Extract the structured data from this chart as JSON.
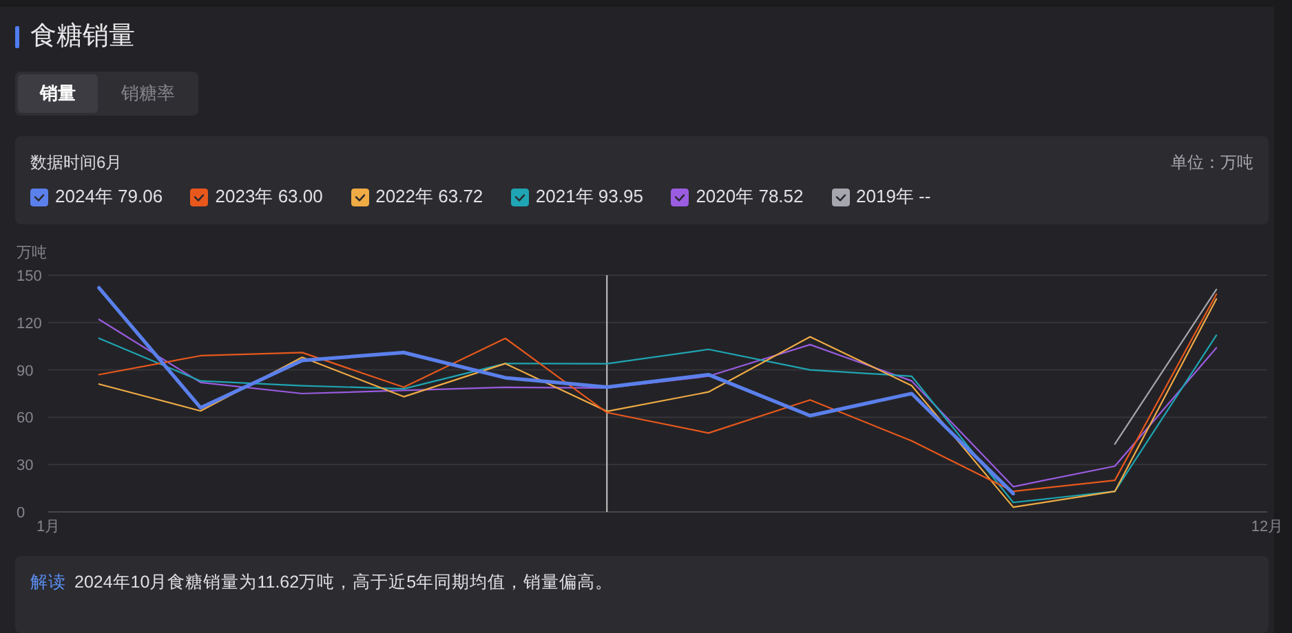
{
  "chart_data": {
    "type": "line",
    "title": "食糖销量",
    "ylabel": "万吨",
    "legend_title": "数据时间6月",
    "annotations": [
      "销量",
      "销糖率",
      "单位：万吨",
      "解读",
      "2024年10月食糖销量为11.62万吨，高于近5年同期均值，销量偏高。"
    ],
    "x": [
      1,
      2,
      3,
      4,
      5,
      6,
      7,
      8,
      9,
      10,
      11,
      12
    ],
    "xlim": [
      0.5,
      12.5
    ],
    "xticks": [
      {
        "value": 0.5,
        "label": "1月"
      },
      {
        "value": 12.5,
        "label": "12月"
      }
    ],
    "ylim": [
      0,
      150
    ],
    "yticks": [
      0,
      30,
      60,
      90,
      120,
      150
    ],
    "grid": "y",
    "legend": "top",
    "ref_lines": [
      {
        "axis": "x",
        "value": 6,
        "color": "#c8c8c8"
      }
    ],
    "series": [
      {
        "name": "2024年 79.06",
        "color": "#5b80ec",
        "values": [
          142,
          66,
          96,
          101,
          85,
          79.06,
          87,
          61,
          75,
          11.62,
          null,
          null
        ]
      },
      {
        "name": "2023年 63.00",
        "color": "#e8581c",
        "values": [
          87,
          99,
          101,
          79,
          110,
          63.0,
          50,
          71,
          45,
          13,
          20,
          138
        ]
      },
      {
        "name": "2022年 63.72",
        "color": "#f0ab45",
        "values": [
          81,
          64,
          98,
          73,
          94,
          63.72,
          76,
          111,
          80,
          3,
          13,
          135
        ]
      },
      {
        "name": "2021年 93.95",
        "color": "#1fa5b3",
        "values": [
          110,
          83,
          80,
          78,
          94,
          93.95,
          103,
          90,
          86,
          6,
          13,
          112
        ]
      },
      {
        "name": "2020年 78.52",
        "color": "#9a5ce0",
        "values": [
          122,
          82,
          75,
          77,
          79,
          78.52,
          86,
          106,
          83,
          16,
          29,
          104
        ]
      },
      {
        "name": "2019年 --",
        "color": "#a6a6ae",
        "values": [
          null,
          null,
          null,
          null,
          null,
          null,
          null,
          null,
          null,
          null,
          43,
          141
        ]
      }
    ]
  }
}
